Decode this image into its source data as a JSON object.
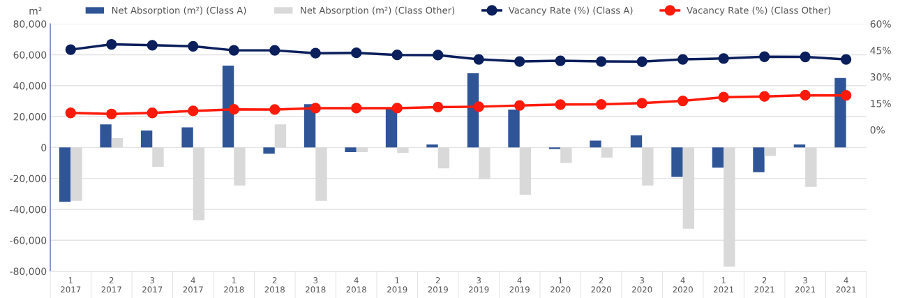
{
  "chart_data": {
    "type": "bar",
    "ylabel": "m²",
    "categories": [
      "1\n2017",
      "2\n2017",
      "3\n2017",
      "4\n2017",
      "1\n2018",
      "2\n2018",
      "3\n2018",
      "4\n2018",
      "1\n2019",
      "2\n2019",
      "3\n2019",
      "4\n2019",
      "1\n2020",
      "2\n2020",
      "3\n2020",
      "4\n2020",
      "1\n2021",
      "2\n2021",
      "3\n2021",
      "4\n2021"
    ],
    "series": [
      {
        "name": "Net Absorption (m²) (Class A)",
        "color": "#2f5597",
        "values": [
          -35000,
          15000,
          11000,
          13000,
          53000,
          -4000,
          28000,
          -3000,
          25000,
          2000,
          48000,
          24500,
          -1000,
          4500,
          7800,
          -19000,
          -13000,
          -16000,
          2000,
          45000
        ]
      },
      {
        "name": "Net Absorption (m²) (Class Other)",
        "color": "#d9d9d9",
        "values": [
          -34500,
          6000,
          -12500,
          -47000,
          -24500,
          15000,
          -34500,
          -3000,
          -3500,
          -13500,
          -20500,
          -30500,
          -10000,
          -6500,
          -24500,
          -52500,
          -77000,
          -5500,
          -25500,
          null
        ]
      },
      {
        "name": "Vacancy Rate (%) (Class A)",
        "type": "line",
        "axis": "y2",
        "color": "#0b1f5c",
        "values": [
          45.4,
          48.4,
          47.9,
          47.3,
          45.0,
          45.0,
          43.4,
          43.6,
          42.4,
          42.3,
          39.9,
          38.7,
          39.1,
          38.7,
          38.6,
          39.9,
          40.4,
          41.4,
          41.3,
          39.9
        ]
      },
      {
        "name": "Vacancy Rate (%) (Class Other)",
        "type": "line",
        "axis": "y2",
        "color": "#ff1a0a",
        "values": [
          9.6,
          9.0,
          9.6,
          10.7,
          11.6,
          11.5,
          12.3,
          12.3,
          12.3,
          12.9,
          13.1,
          13.8,
          14.3,
          14.4,
          15.1,
          16.4,
          18.5,
          18.9,
          19.6,
          19.5
        ]
      }
    ],
    "ylim": [
      -80000,
      80000
    ],
    "yticks": [
      {
        "value": -80000,
        "label": "-80,000"
      },
      {
        "value": -60000,
        "label": "-60,000"
      },
      {
        "value": -40000,
        "label": "-40,000"
      },
      {
        "value": -20000,
        "label": "-20,000"
      },
      0,
      {
        "value": 20000,
        "label": "20,000"
      },
      {
        "value": 40000,
        "label": "40,000"
      },
      {
        "value": 60000,
        "label": "60,000"
      },
      {
        "value": 80000,
        "label": "80,000"
      }
    ],
    "y2lim": [
      -80,
      60
    ],
    "y2ticks": [
      {
        "value": 0,
        "label": "0%"
      },
      {
        "value": 15,
        "label": "15%"
      },
      {
        "value": 30,
        "label": "30%"
      },
      {
        "value": 45,
        "label": "45%"
      },
      {
        "value": 60,
        "label": "60%"
      }
    ],
    "grid": "y",
    "legend": "top",
    "marker": "circle",
    "line_style": "solid"
  }
}
